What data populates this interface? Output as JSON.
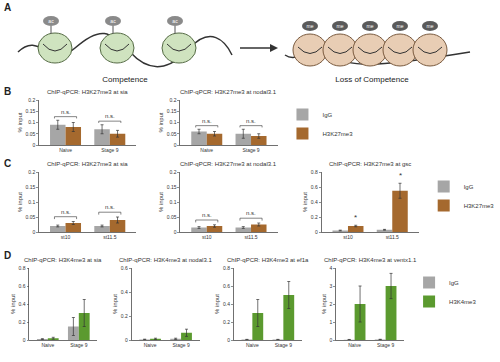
{
  "figure": {
    "panel_labels": [
      "A",
      "B",
      "C",
      "D"
    ]
  },
  "diagram": {
    "left_label": "Competence",
    "right_label": "Loss of Competence",
    "left_marks": [
      "ac",
      "ac",
      "ac"
    ],
    "right_marks": [
      "me",
      "me",
      "me",
      "me",
      "me"
    ]
  },
  "chart_data": [
    {
      "type": "bar",
      "title": "ChIP-qPCR: H3K27me3 at sia",
      "y_label": "% input",
      "categories": [
        "Naive",
        "Stage 9"
      ],
      "series": [
        {
          "name": "IgG",
          "color": "#a6a6a6",
          "values": [
            0.09,
            0.07
          ],
          "errors": [
            0.02,
            0.02
          ]
        },
        {
          "name": "H3K27me3",
          "color": "#a5692e",
          "values": [
            0.08,
            0.05
          ],
          "errors": [
            0.02,
            0.015
          ]
        }
      ],
      "ylim": [
        0,
        0.2
      ],
      "yticks": [
        0,
        0.05,
        0.1,
        0.15,
        0.2
      ],
      "grid": false,
      "annotations": [
        {
          "category": "Naive",
          "text": "n.s."
        },
        {
          "category": "Stage 9",
          "text": "n.s."
        }
      ]
    },
    {
      "type": "bar",
      "title": "ChIP-qPCR: H3K27me3 at nodal3.1",
      "y_label": "% input",
      "categories": [
        "Naive",
        "Stage 9"
      ],
      "series": [
        {
          "name": "IgG",
          "color": "#a6a6a6",
          "values": [
            0.06,
            0.05
          ],
          "errors": [
            0.01,
            0.02
          ]
        },
        {
          "name": "H3K27me3",
          "color": "#a5692e",
          "values": [
            0.05,
            0.04
          ],
          "errors": [
            0.01,
            0.01
          ]
        }
      ],
      "ylim": [
        0,
        0.2
      ],
      "yticks": [
        0,
        0.05,
        0.1,
        0.15,
        0.2
      ],
      "grid": false,
      "legend": "right",
      "annotations": [
        {
          "category": "Naive",
          "text": "n.s."
        },
        {
          "category": "Stage 9",
          "text": "n.s."
        }
      ]
    },
    {
      "type": "bar",
      "title": "ChIP-qPCR: H3K27me3 at sia",
      "y_label": "% input",
      "categories": [
        "st10",
        "st11.5"
      ],
      "series": [
        {
          "name": "IgG",
          "color": "#a6a6a6",
          "values": [
            0.02,
            0.02
          ],
          "errors": [
            0.003,
            0.003
          ]
        },
        {
          "name": "H3K27me3",
          "color": "#a5692e",
          "values": [
            0.03,
            0.04
          ],
          "errors": [
            0.005,
            0.01
          ]
        }
      ],
      "ylim": [
        0,
        0.2
      ],
      "yticks": [
        0,
        0.05,
        0.1,
        0.15,
        0.2
      ],
      "grid": false,
      "annotations": [
        {
          "category": "st10",
          "text": "n.s."
        },
        {
          "category": "st11.5",
          "text": "n.s."
        }
      ]
    },
    {
      "type": "bar",
      "title": "ChIP-qPCR: H3K27me3 at nodal3.1",
      "y_label": "% input",
      "categories": [
        "st10",
        "st11.5"
      ],
      "series": [
        {
          "name": "IgG",
          "color": "#a6a6a6",
          "values": [
            0.015,
            0.015
          ],
          "errors": [
            0.003,
            0.003
          ]
        },
        {
          "name": "H3K27me3",
          "color": "#a5692e",
          "values": [
            0.02,
            0.025
          ],
          "errors": [
            0.004,
            0.005
          ]
        }
      ],
      "ylim": [
        0,
        0.2
      ],
      "yticks": [
        0,
        0.05,
        0.1,
        0.15,
        0.2
      ],
      "grid": false,
      "annotations": [
        {
          "category": "st10",
          "text": "n.s."
        },
        {
          "category": "st11.5",
          "text": "n.s."
        }
      ]
    },
    {
      "type": "bar",
      "title": "ChIP-qPCR: H3K27me3 at gsc",
      "y_label": "% input",
      "categories": [
        "st10",
        "st11.5"
      ],
      "series": [
        {
          "name": "IgG",
          "color": "#a6a6a6",
          "values": [
            0.02,
            0.03
          ],
          "errors": [
            0.005,
            0.005
          ]
        },
        {
          "name": "H3K27me3",
          "color": "#a5692e",
          "values": [
            0.08,
            0.55
          ],
          "errors": [
            0.01,
            0.1
          ]
        }
      ],
      "ylim": [
        0,
        0.8
      ],
      "yticks": [
        0,
        0.2,
        0.4,
        0.6,
        0.8
      ],
      "grid": false,
      "legend": "right",
      "annotations": [
        {
          "category": "st10",
          "series": "H3K27me3",
          "text": "*"
        },
        {
          "category": "st11.5",
          "series": "H3K27me3",
          "text": "*"
        }
      ]
    },
    {
      "type": "bar",
      "title": "ChIP-qPCR: H3K4me3 at sia",
      "y_label": "% input",
      "categories": [
        "Naive",
        "Stage 9"
      ],
      "series": [
        {
          "name": "IgG",
          "color": "#a6a6a6",
          "values": [
            0.01,
            0.15
          ],
          "errors": [
            0.005,
            0.1
          ]
        },
        {
          "name": "H3K4me3",
          "color": "#5b9a2f",
          "values": [
            0.02,
            0.3
          ],
          "errors": [
            0.01,
            0.15
          ]
        }
      ],
      "ylim": [
        0,
        0.8
      ],
      "yticks": [
        0,
        0.2,
        0.4,
        0.6,
        0.8
      ],
      "grid": false
    },
    {
      "type": "bar",
      "title": "ChIP-qPCR: H3K4me3 at nodal3.1",
      "y_label": "% input",
      "categories": [
        "Naive",
        "Stage 9"
      ],
      "series": [
        {
          "name": "IgG",
          "color": "#a6a6a6",
          "values": [
            0.005,
            0.01
          ],
          "errors": [
            0.002,
            0.005
          ]
        },
        {
          "name": "H3K4me3",
          "color": "#5b9a2f",
          "values": [
            0.01,
            0.06
          ],
          "errors": [
            0.005,
            0.03
          ]
        }
      ],
      "ylim": [
        0,
        0.6
      ],
      "yticks": [
        0,
        0.2,
        0.4,
        0.6
      ],
      "grid": false
    },
    {
      "type": "bar",
      "title": "ChIP-qPCR: H3K4me3 at ef1a",
      "y_label": "% input",
      "categories": [
        "Naive",
        "Stage 9"
      ],
      "series": [
        {
          "name": "IgG",
          "color": "#a6a6a6",
          "values": [
            0.005,
            0.005
          ],
          "errors": [
            0.002,
            0.002
          ]
        },
        {
          "name": "H3K4me3",
          "color": "#5b9a2f",
          "values": [
            0.3,
            0.5
          ],
          "errors": [
            0.15,
            0.15
          ]
        }
      ],
      "ylim": [
        0,
        0.8
      ],
      "yticks": [
        0,
        0.2,
        0.4,
        0.6,
        0.8
      ],
      "grid": false
    },
    {
      "type": "bar",
      "title": "ChIP-qPCR: H3K4me3 at ventx1.1",
      "y_label": "% input",
      "categories": [
        "Naive",
        "Stage 9"
      ],
      "series": [
        {
          "name": "IgG",
          "color": "#a6a6a6",
          "values": [
            0.02,
            0.03
          ],
          "errors": [
            0.01,
            0.01
          ]
        },
        {
          "name": "H3K4me3",
          "color": "#5b9a2f",
          "values": [
            2.0,
            3.0
          ],
          "errors": [
            1.0,
            0.7
          ]
        }
      ],
      "ylim": [
        0,
        4
      ],
      "yticks": [
        0,
        1,
        2,
        3,
        4
      ],
      "grid": false,
      "legend": "right"
    }
  ]
}
